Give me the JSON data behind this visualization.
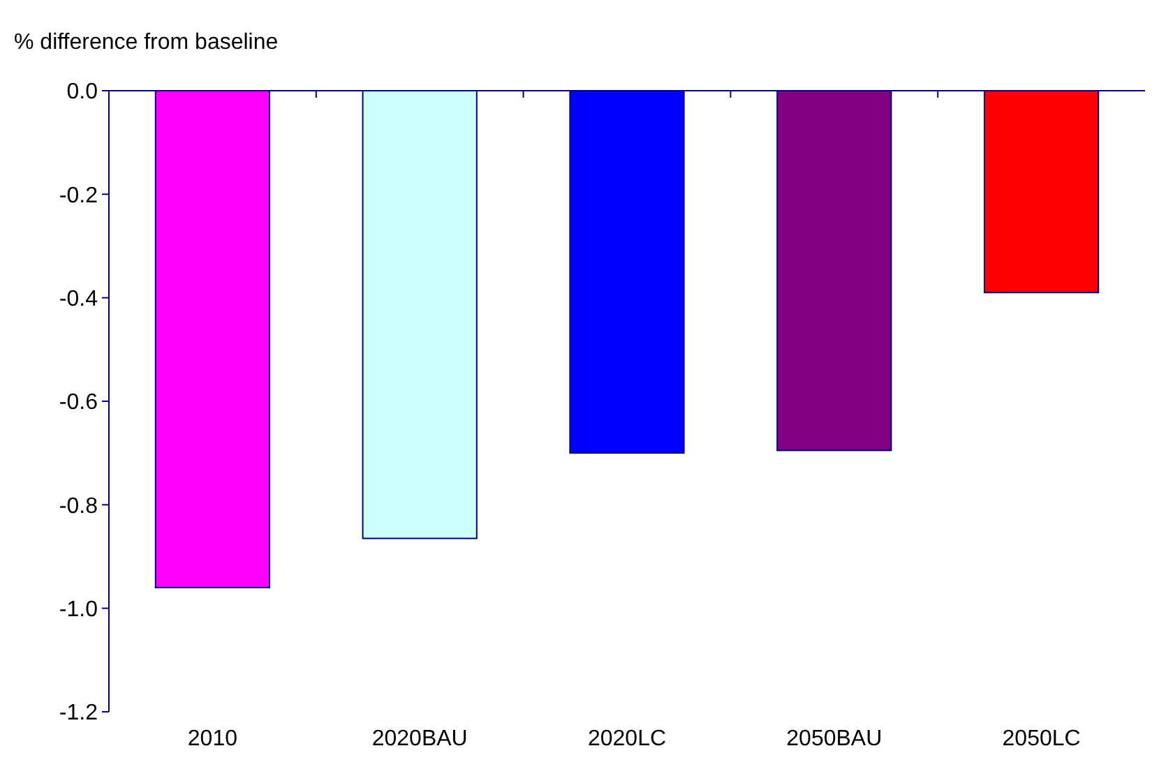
{
  "chart_data": {
    "type": "bar",
    "ylabel": "% difference from baseline",
    "categories": [
      "2010",
      "2020BAU",
      "2020LC",
      "2050BAU",
      "2050LC"
    ],
    "values": [
      -0.96,
      -0.865,
      -0.7,
      -0.695,
      -0.39
    ],
    "colors": [
      "#ff00ff",
      "#ccffff",
      "#0000ff",
      "#800080",
      "#ff0000"
    ],
    "ylim": [
      -1.2,
      0
    ],
    "yticks": [
      {
        "value": -1.2,
        "label": "-1.2"
      },
      {
        "value": -1.0,
        "label": "-1.0"
      },
      {
        "value": -0.8,
        "label": "-0.8"
      },
      {
        "value": -0.6,
        "label": "-0.6"
      },
      {
        "value": -0.4,
        "label": "-0.4"
      },
      {
        "value": -0.2,
        "label": "-0.2"
      },
      {
        "value": 0,
        "label": "0.0"
      }
    ],
    "tick_labels": "xy"
  }
}
